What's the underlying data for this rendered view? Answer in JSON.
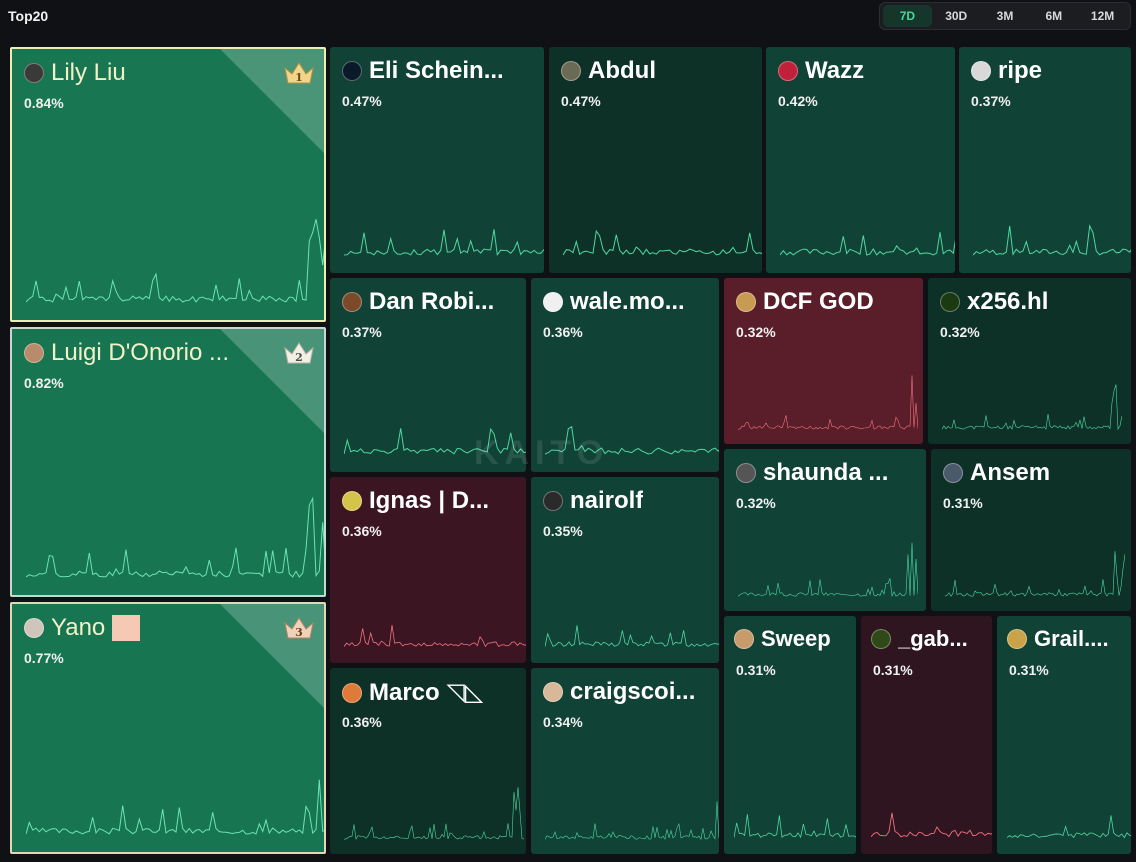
{
  "header": {
    "title": "Top20"
  },
  "tabs": [
    {
      "label": "7D",
      "active": true
    },
    {
      "label": "30D",
      "active": false
    },
    {
      "label": "3M",
      "active": false
    },
    {
      "label": "6M",
      "active": false
    },
    {
      "label": "12M",
      "active": false
    }
  ],
  "watermark": "KAITO",
  "colors": {
    "green_line": "#4fd7a1",
    "red_line": "#f0707f",
    "active_tab": "#4ad79b"
  },
  "leaders": [
    {
      "rank": "1",
      "name": "Lily Liu",
      "pct": "0.84%",
      "icon": "crown-icon"
    },
    {
      "rank": "2",
      "name": "Luigi D'Onorio ...",
      "pct": "0.82%",
      "icon": "crown-icon"
    },
    {
      "rank": "3",
      "name": "Yano",
      "pct": "0.77%",
      "icon": "crown-icon"
    }
  ],
  "tiles": [
    {
      "name": "Eli Schein...",
      "pct": "0.47%"
    },
    {
      "name": "Abdul",
      "pct": "0.47%"
    },
    {
      "name": "Wazz",
      "pct": "0.42%"
    },
    {
      "name": "ripe",
      "pct": "0.37%"
    },
    {
      "name": "Dan Robi...",
      "pct": "0.37%"
    },
    {
      "name": "wale.mo...",
      "pct": "0.36%"
    },
    {
      "name": "DCF GOD",
      "pct": "0.32%"
    },
    {
      "name": "x256.hl",
      "pct": "0.32%"
    },
    {
      "name": "Ignas | D...",
      "pct": "0.36%"
    },
    {
      "name": "nairolf",
      "pct": "0.35%"
    },
    {
      "name": "shaunda ...",
      "pct": "0.32%"
    },
    {
      "name": "Ansem",
      "pct": "0.31%"
    },
    {
      "name": "Marco ◹◺",
      "pct": "0.36%"
    },
    {
      "name": "craigscoi...",
      "pct": "0.34%"
    },
    {
      "name": "Sweep",
      "pct": "0.31%"
    },
    {
      "name": "_gab...",
      "pct": "0.31%"
    },
    {
      "name": "Grail....",
      "pct": "0.31%"
    }
  ]
}
